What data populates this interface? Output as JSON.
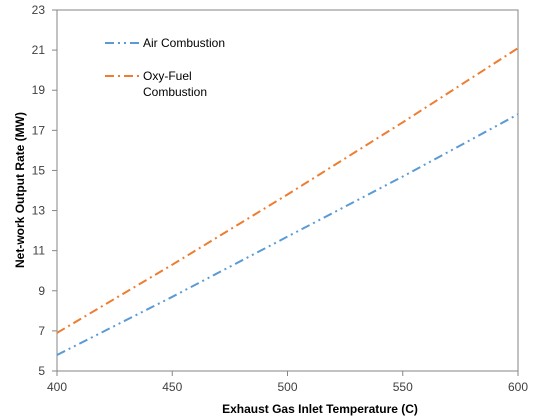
{
  "chart_data": {
    "type": "line",
    "title": "",
    "xlabel": "Exhaust Gas Inlet Temperature (C)",
    "ylabel": "Net-work Output Rate (MW)",
    "xlim": [
      400,
      600
    ],
    "ylim": [
      5,
      23
    ],
    "x_ticks": [
      400,
      450,
      500,
      550,
      600
    ],
    "y_ticks": [
      5,
      7,
      9,
      11,
      13,
      15,
      17,
      19,
      21,
      23
    ],
    "grid": false,
    "legend_position": "top-left",
    "series": [
      {
        "name": "Air Combustion",
        "color": "#5b9bd5",
        "line_style": "dash-dot-dot",
        "x": [
          400,
          450,
          500,
          550,
          600
        ],
        "values": [
          5.8,
          8.7,
          11.7,
          14.7,
          17.8
        ]
      },
      {
        "name": "Oxy-Fuel Combustion",
        "legend_lines": [
          "Oxy-Fuel",
          "Combustion"
        ],
        "color": "#ed7d31",
        "line_style": "dash-dot",
        "x": [
          400,
          450,
          500,
          550,
          600
        ],
        "values": [
          6.9,
          10.3,
          13.8,
          17.4,
          21.1
        ]
      }
    ]
  }
}
